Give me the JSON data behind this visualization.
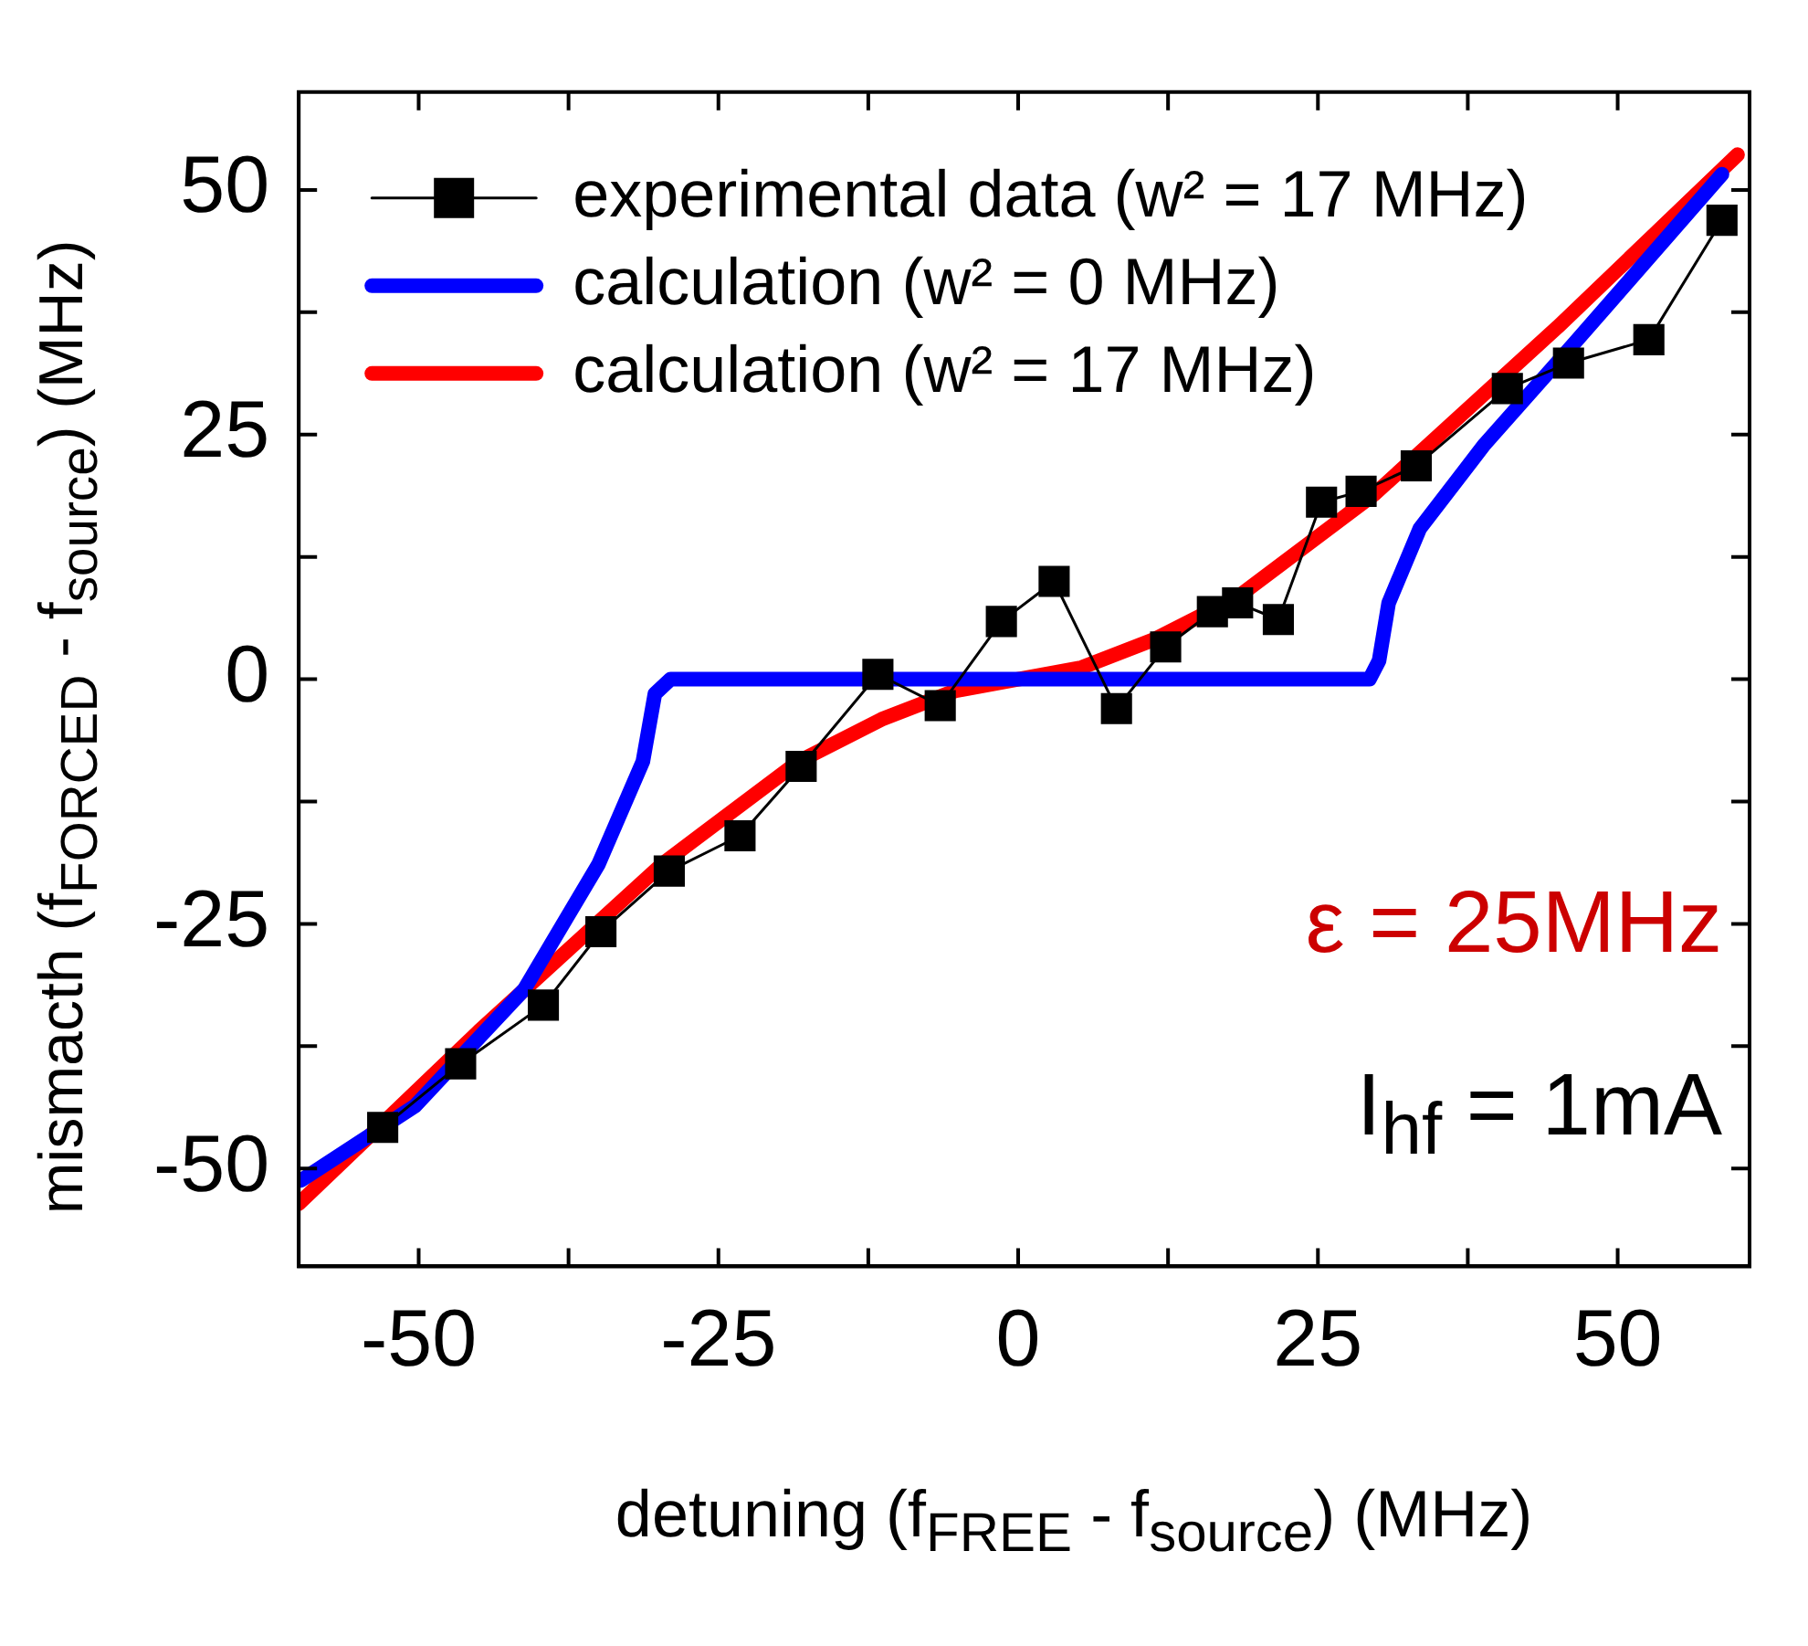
{
  "chart_data": {
    "type": "line",
    "xlabel": "detuning (f$_{FREE}$ - f$_{source}$) (MHz)",
    "ylabel": "mismacth (f$_{FORCED}$ - f$_{source}$) (MHz)",
    "xlim": [
      -60,
      61
    ],
    "ylim": [
      -60,
      60
    ],
    "xticks": [
      -50,
      {
        "value": -37.5,
        "label": null
      },
      -25,
      {
        "value": -12.5,
        "label": null
      },
      0,
      {
        "value": 12.5,
        "label": null
      },
      25,
      {
        "value": 37.5,
        "label": null
      },
      50
    ],
    "yticks": [
      -50,
      {
        "value": -37.5,
        "label": null
      },
      -25,
      {
        "value": -12.5,
        "label": null
      },
      0,
      {
        "value": 12.5,
        "label": null
      },
      25,
      {
        "value": 37.5,
        "label": null
      },
      50
    ],
    "grid": false,
    "legend": "top left",
    "annotations": [
      "ε = 25MHz",
      "I$_{hf}$ = 1mA"
    ],
    "series": [
      {
        "name": "experimental data (w² = 17 MHz)",
        "color": "#000000",
        "marker": "square",
        "x": [
          -53,
          -46.5,
          -39.6,
          -34.8,
          -29.1,
          -23.2,
          -18.1,
          -11.7,
          -6.5,
          -1.4,
          3.0,
          8.2,
          12.3,
          16.2,
          18.3,
          21.7,
          25.3,
          28.6,
          33.2,
          40.8,
          45.9,
          52.6,
          58.7
        ],
        "values": [
          -45.8,
          -39.3,
          -33.3,
          -25.8,
          -19.6,
          -16,
          -8.9,
          0.5,
          -2.7,
          5.9,
          10,
          -3,
          3.3,
          6.9,
          7.8,
          6.1,
          18.1,
          19.2,
          21.8,
          29.7,
          32.3,
          34.7,
          46.9
        ]
      },
      {
        "name": "calculation (w² = 0 MHz)",
        "color": "#0000ff",
        "marker": "none",
        "x": [
          -59.8,
          -50.3,
          -41.2,
          -35,
          -31.3,
          -30.3,
          -29,
          29.3,
          30.1,
          30.9,
          33.5,
          38.9,
          46.5,
          58.7
        ],
        "values": [
          -51.2,
          -43.6,
          -31.7,
          -18.9,
          -8.4,
          -1.5,
          0,
          0,
          1.9,
          7.8,
          15.4,
          24,
          34.5,
          51.6
        ]
      },
      {
        "name": "calculation (w² = 17 MHz)",
        "color": "#ff0000",
        "marker": "none",
        "x": [
          -60,
          -45,
          -29.7,
          -18.3,
          -11.4,
          -5.3,
          0,
          5.3,
          11.4,
          18.3,
          29.7,
          45,
          60
        ],
        "values": [
          -53.6,
          -36,
          -18.9,
          -8.4,
          -4.1,
          -1.2,
          0,
          1.2,
          4.1,
          8.4,
          18.9,
          36,
          53.6
        ]
      }
    ]
  }
}
